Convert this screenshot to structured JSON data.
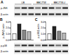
{
  "figure": {
    "panel_labels": [
      "A",
      "B",
      "C"
    ],
    "blot_lanes": [
      "LB",
      "BBC/TW",
      "BBC/TW+I"
    ],
    "blot_rows": [
      "p-JNK",
      "β-actin"
    ],
    "bottom_blot_rows": [
      "p-p38",
      "β-actin"
    ]
  },
  "chart_data": [
    {
      "type": "bar",
      "y_label": "p-JNK/β-actin",
      "categories": [
        null,
        null,
        null,
        null
      ],
      "values": [
        1,
        2.6,
        1.6,
        1.3
      ],
      "colors": [
        "#ffffff",
        "#222222",
        "#888888",
        "#bbbbbb"
      ],
      "ylim": [
        0,
        3
      ],
      "yticks": [
        0,
        1,
        2,
        3
      ],
      "tick_labels": "y"
    },
    {
      "type": "bar",
      "y_label": "p-p38/β-actin",
      "categories": [
        null,
        null,
        null,
        null
      ],
      "values": [
        1,
        2.2,
        1.4,
        1.1
      ],
      "colors": [
        "#ffffff",
        "#222222",
        "#888888",
        "#bbbbbb"
      ],
      "ylim": [
        0,
        3
      ],
      "yticks": [
        0,
        1,
        2,
        3
      ],
      "tick_labels": "y"
    }
  ]
}
